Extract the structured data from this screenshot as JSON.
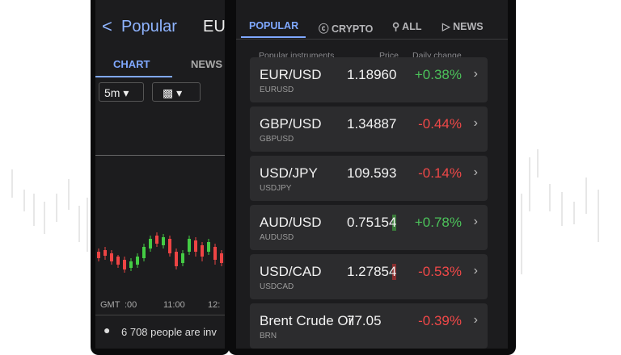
{
  "left_screen": {
    "back_title": "Popular",
    "symbol": "EU",
    "tabs": [
      "CHART",
      "NEWS"
    ],
    "timeframe": "5m",
    "time_labels": [
      "GMT",
      ":00",
      "11:00",
      "12:"
    ],
    "people": "6 708 people are inv"
  },
  "right_screen": {
    "tabs": [
      "POPULAR",
      "CRYPTO",
      "ALL",
      "NEWS"
    ],
    "columns": [
      "Popular instruments",
      "Price",
      "Daily change"
    ],
    "rows": [
      {
        "name": "EUR/USD",
        "code": "EURUSD",
        "price": "1.18960",
        "change": "+0.38%",
        "change_color": "#4cc25a"
      },
      {
        "name": "GBP/USD",
        "code": "GBPUSD",
        "price": "1.34887",
        "change": "-0.44%",
        "change_color": "#f04848"
      },
      {
        "name": "USD/JPY",
        "code": "USDJPY",
        "price": "109.593",
        "change": "-0.14%",
        "change_color": "#f04848"
      },
      {
        "name": "AUD/USD",
        "code": "AUDUSD",
        "price": "0.75154",
        "change": "+0.78%",
        "change_color": "#4cc25a"
      },
      {
        "name": "USD/CAD",
        "code": "USDCAD",
        "price": "1.27854",
        "change": "-0.53%",
        "change_color": "#f04848"
      },
      {
        "name": "Brent Crude Oil",
        "code": "BRN",
        "price": "77.05",
        "change": "-0.39%",
        "change_color": "#f04848"
      }
    ]
  }
}
